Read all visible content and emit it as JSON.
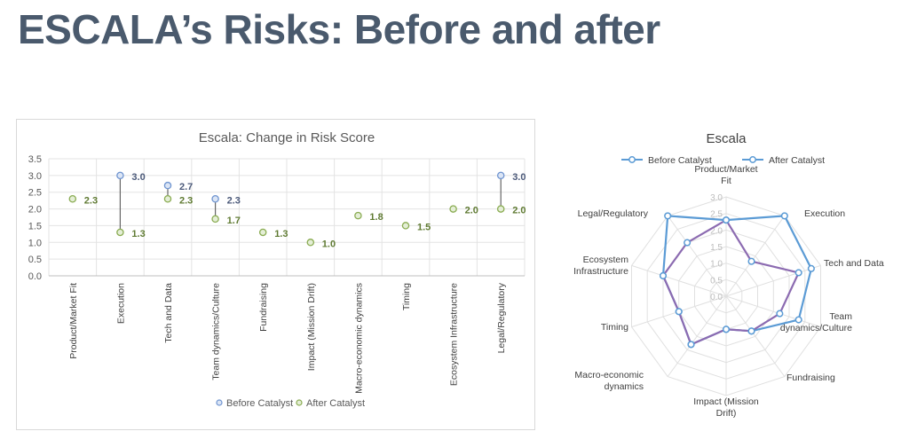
{
  "page": {
    "title": "ESCALA’s Risks: Before and after"
  },
  "colors": {
    "before": "#6f94d0",
    "after": "#8aac52",
    "radar_before": "#5b9bd5",
    "radar_after": "#8c6bb1",
    "value_before": "#4c5a7a",
    "value_after": "#5f7a32"
  },
  "chart_data": [
    {
      "type": "scatter",
      "title": "Escala: Change in Risk Score",
      "categories": [
        "Product/Market Fit",
        "Execution",
        "Tech and Data",
        "Team dynamics/Culture",
        "Fundraising",
        "Impact (Mission Drift)",
        "Macro-economic dynamics",
        "Timing",
        "Ecosystem Infrastructure",
        "Legal/Regulatory"
      ],
      "series": [
        {
          "name": "Before Catalyst",
          "values": [
            null,
            3.0,
            2.7,
            2.3,
            null,
            null,
            null,
            null,
            null,
            3.0
          ],
          "labels": [
            "",
            "3.0",
            "2.7",
            "2.3",
            "",
            "",
            "",
            "",
            "",
            "3.0"
          ]
        },
        {
          "name": "After Catalyst",
          "values": [
            2.3,
            1.3,
            2.3,
            1.7,
            1.3,
            1.0,
            1.8,
            1.5,
            2.0,
            2.0
          ],
          "labels": [
            "2.3",
            "1.3",
            "2.3",
            "1.7",
            "1.3",
            "1.0",
            "1.8",
            "1.5",
            "2.0",
            "2.0"
          ]
        }
      ],
      "ylim": [
        0,
        3.5
      ],
      "yticks": [
        "0.0",
        "0.5",
        "1.0",
        "1.5",
        "2.0",
        "2.5",
        "3.0",
        "3.5"
      ],
      "grid": true,
      "legend": "bottom"
    },
    {
      "type": "radar",
      "title": "Escala",
      "categories": [
        [
          "Product/Market",
          "Fit"
        ],
        [
          "Execution"
        ],
        [
          "Tech and Data"
        ],
        [
          "Team",
          "dynamics/Culture"
        ],
        [
          "Fundraising"
        ],
        [
          "Impact (Mission",
          "Drift)"
        ],
        [
          "Macro-economic",
          "dynamics"
        ],
        [
          "Timing"
        ],
        [
          "Ecosystem",
          "Infrastructure"
        ],
        [
          "Legal/Regulatory"
        ]
      ],
      "series": [
        {
          "name": "Before Catalyst",
          "values": [
            2.3,
            3.0,
            2.7,
            2.3,
            1.3,
            1.0,
            1.8,
            1.5,
            2.0,
            3.0
          ]
        },
        {
          "name": "After Catalyst",
          "values": [
            2.3,
            1.3,
            2.3,
            1.7,
            1.3,
            1.0,
            1.8,
            1.5,
            2.0,
            2.0
          ]
        }
      ],
      "rlim": [
        0,
        3.0
      ],
      "rticks": [
        "0.0",
        "0.5",
        "1.0",
        "1.5",
        "2.0",
        "2.5",
        "3.0"
      ],
      "legend": "top"
    }
  ]
}
